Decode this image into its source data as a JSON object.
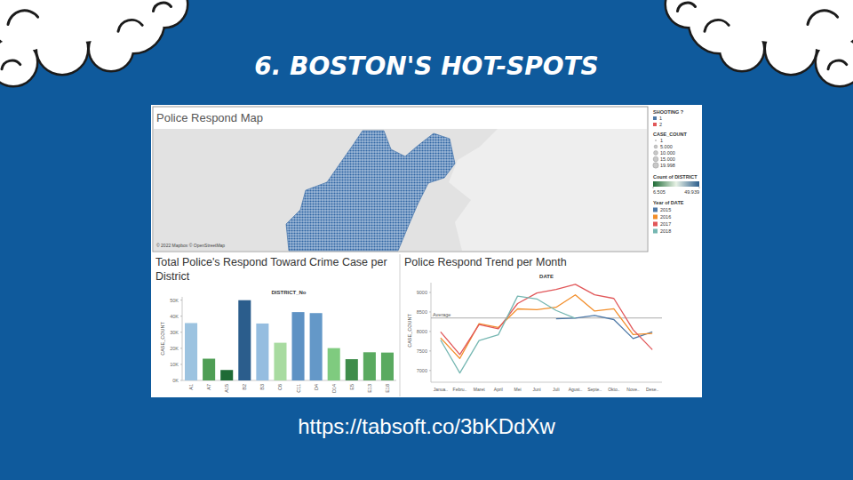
{
  "slide": {
    "title": "6. BOSTON'S HOT-SPOTS",
    "url": "https://tabsoft.co/3bKDdXw"
  },
  "map": {
    "title": "Police Respond Map",
    "credit": "© 2022 Mapbox © OpenStreetMap",
    "shooting_legend": {
      "title": "SHOOTING ?",
      "items": [
        "1",
        "2"
      ]
    },
    "size_legend": {
      "title": "CASE_COUNT",
      "values": [
        1,
        5000,
        10000,
        15000,
        19998
      ],
      "value_labels": [
        "1",
        "5.000",
        "10.000",
        "15.000",
        "19.998"
      ]
    }
  },
  "chart_data": [
    {
      "type": "bar",
      "title": "Total Police's Respond Toward Crime Case per District",
      "x_label": "DISTRICT_No",
      "y_label": "CASE_COUNT",
      "categories": [
        "A1",
        "A7",
        "A15",
        "B2",
        "B3",
        "C6",
        "C11",
        "D4",
        "D14",
        "E5",
        "E13",
        "E18"
      ],
      "values": [
        35717,
        13544,
        6505,
        49939,
        35442,
        23460,
        42530,
        41915,
        20127,
        13239,
        17536,
        17348
      ],
      "colors": [
        "#9cc3e0",
        "#4f9e55",
        "#1f6b36",
        "#2b5d8c",
        "#95bde0",
        "#a8dba0",
        "#5e92c4",
        "#6498c8",
        "#7fcb7f",
        "#3f8d4b",
        "#5aaa60",
        "#5aaa60"
      ],
      "ylim": [
        0,
        52000
      ],
      "yticks": [
        {
          "value": 0,
          "label": "0K"
        },
        {
          "value": 10000,
          "label": "10K"
        },
        {
          "value": 20000,
          "label": "20K"
        },
        {
          "value": 30000,
          "label": "30K"
        },
        {
          "value": 40000,
          "label": "40K"
        },
        {
          "value": 50000,
          "label": "50K"
        }
      ],
      "grid": false,
      "data_labels": false,
      "color_scale": {
        "title": "Count of DISTRICT",
        "range": [
          6505,
          49939
        ],
        "ticks": [
          {
            "value": 6505,
            "label": "6.505"
          },
          {
            "value": 49939,
            "label": "49.939"
          }
        ]
      }
    },
    {
      "type": "line",
      "title": "Police Respond Trend per Month",
      "x_label": "DATE",
      "y_label": "CASE_COUNT",
      "categories": [
        "Janua..",
        "Febru..",
        "Maret",
        "April",
        "Mei",
        "Juni",
        "Juli",
        "Agust..",
        "Septe..",
        "Okto..",
        "Nove..",
        "Dese.."
      ],
      "series": [
        {
          "name": "2015",
          "color": "#4e79a7",
          "values": [
            null,
            null,
            null,
            null,
            null,
            null,
            8324,
            8340,
            8411,
            8305,
            7818,
            7987
          ]
        },
        {
          "name": "2016",
          "color": "#f28e2b",
          "values": [
            7835,
            7308,
            8199,
            8101,
            8578,
            8558,
            8619,
            8938,
            8522,
            8583,
            7922,
            7951
          ]
        },
        {
          "name": "2017",
          "color": "#e15759",
          "values": [
            7991,
            7408,
            8179,
            8069,
            8715,
            8985,
            9075,
            9206,
            8940,
            8846,
            8047,
            7535
          ]
        },
        {
          "name": "2018",
          "color": "#76b7b2",
          "values": [
            7782,
            6937,
            7768,
            7916,
            8906,
            8834,
            8538,
            8337,
            null,
            null,
            null,
            null
          ]
        }
      ],
      "ylim": [
        6700,
        9250
      ],
      "yticks": [
        7000,
        7500,
        8000,
        8500,
        9000
      ],
      "grid": false,
      "legend": "right",
      "legend_title": "Year of DATE",
      "line_style": "solid",
      "annotations": [
        {
          "text": "Average",
          "y": 8345
        }
      ]
    }
  ]
}
